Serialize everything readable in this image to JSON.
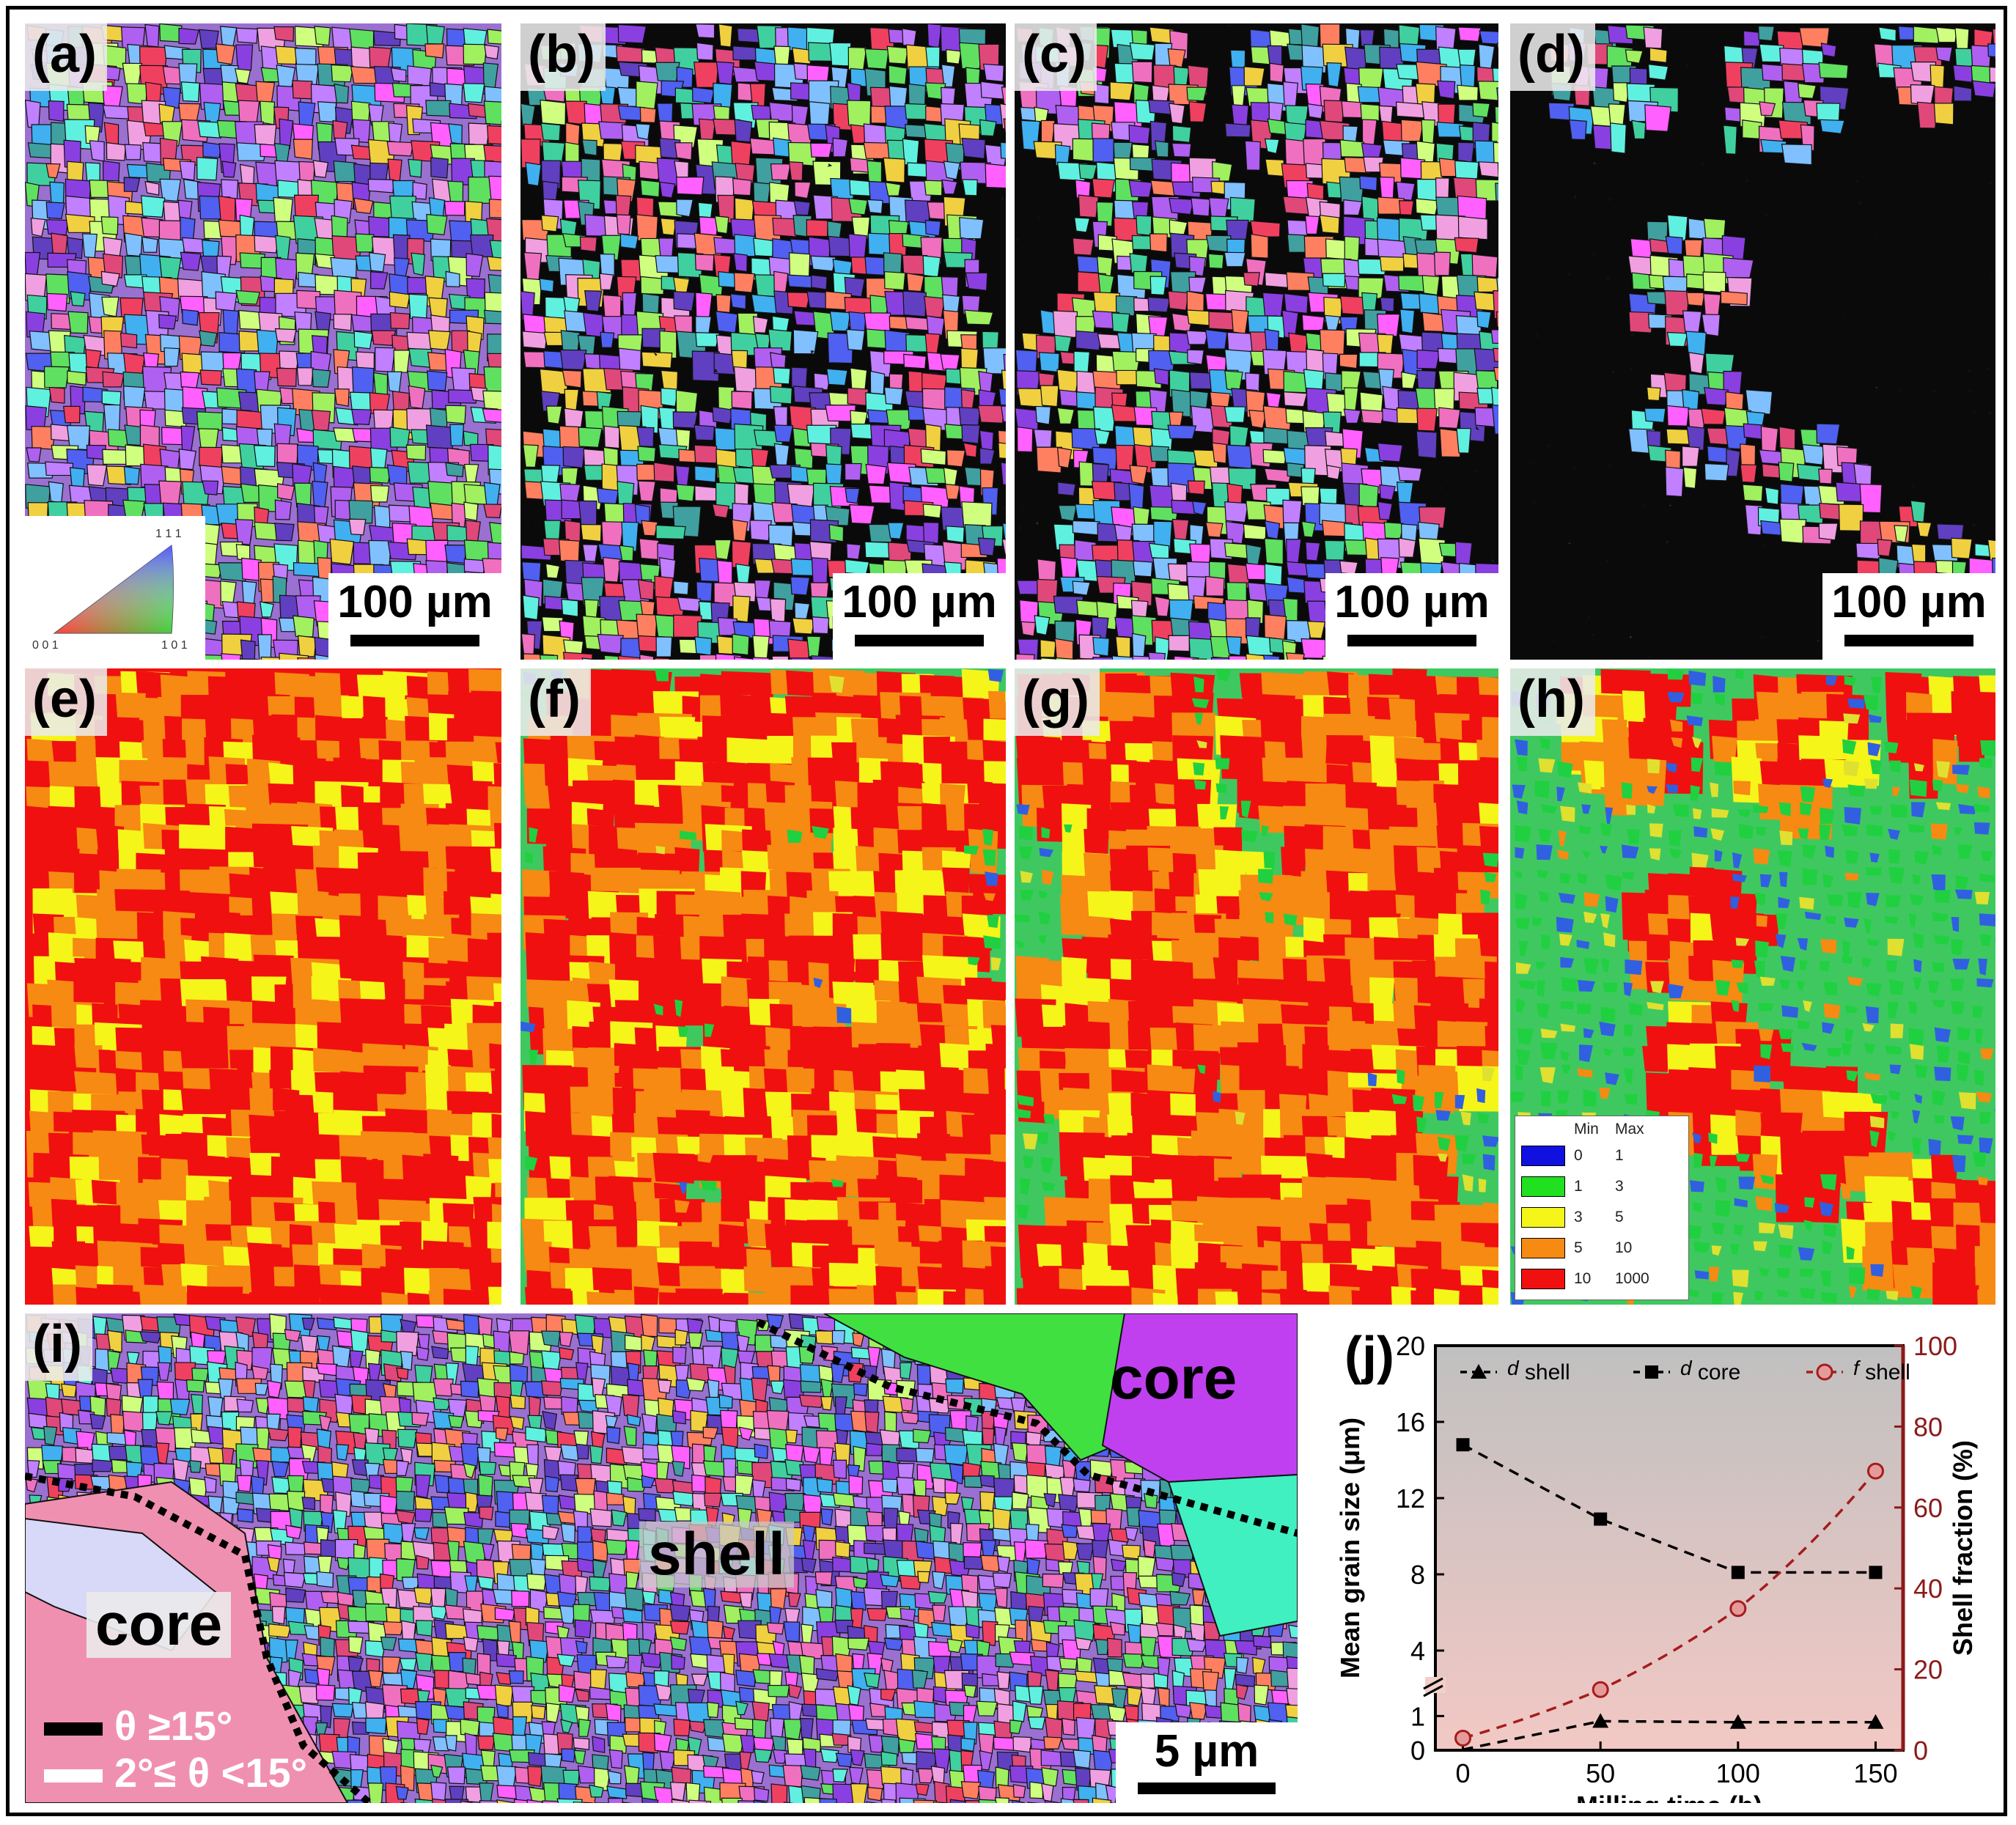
{
  "panels": {
    "a": {
      "label": "(a)",
      "scale": "100 µm"
    },
    "b": {
      "label": "(b)",
      "scale": "100 µm"
    },
    "c": {
      "label": "(c)",
      "scale": "100 µm"
    },
    "d": {
      "label": "(d)",
      "scale": "100 µm"
    },
    "e": {
      "label": "(e)"
    },
    "f": {
      "label": "(f)"
    },
    "g": {
      "label": "(g)"
    },
    "h": {
      "label": "(h)"
    },
    "i": {
      "label": "(i)",
      "scale": "5 µm"
    },
    "j": {
      "label": "(j)"
    }
  },
  "ipf_key": {
    "top": "1 1 1",
    "bottom_left": "0 0 1",
    "bottom_right": "1 0 1"
  },
  "kam_legend": {
    "min_header": "Min",
    "max_header": "Max",
    "rows": [
      {
        "min": "0",
        "max": "1",
        "color": "#1010e0"
      },
      {
        "min": "1",
        "max": "3",
        "color": "#20e020"
      },
      {
        "min": "3",
        "max": "5",
        "color": "#f5f51a"
      },
      {
        "min": "5",
        "max": "10",
        "color": "#f68a12"
      },
      {
        "min": "10",
        "max": "1000",
        "color": "#f01010"
      }
    ]
  },
  "panel_i": {
    "core_top": "core",
    "core_left": "core",
    "shell": "shell",
    "hagb": "θ ≥15°",
    "lagb": "2°≤ θ <15°"
  },
  "chart_data": {
    "type": "line",
    "title": "",
    "xlabel": "Milling time (h)",
    "ylabel_left": "Mean grain size (μm)",
    "ylabel_right": "Shell fraction (%)",
    "x_ticks": [
      "0",
      "50",
      "100",
      "150"
    ],
    "y_left_ticks": [
      "0",
      "1",
      "4",
      "8",
      "12",
      "16",
      "20"
    ],
    "y_right_ticks": [
      "0",
      "20",
      "40",
      "60",
      "80",
      "100"
    ],
    "xlim": [
      -10,
      160
    ],
    "y_left_broken_axis": {
      "lower": [
        0,
        1.5
      ],
      "upper": [
        3,
        20
      ]
    },
    "ylim_right": [
      0,
      100
    ],
    "background": {
      "top": "#c0c0c0",
      "bottom": "#f2c8c4"
    },
    "legend_position": "top",
    "series": [
      {
        "name": "d shell",
        "legend_italic": "d",
        "legend_rest": " shell",
        "axis": "left",
        "marker": "triangle",
        "style": "dashed",
        "color": "#000000",
        "x": [
          50,
          100,
          150
        ],
        "y": [
          0.85,
          0.82,
          0.82
        ]
      },
      {
        "name": "d core",
        "legend_italic": "d",
        "legend_rest": " core",
        "axis": "left",
        "marker": "square",
        "style": "dashed",
        "color": "#000000",
        "x": [
          0,
          50,
          100,
          150
        ],
        "y": [
          14.8,
          10.9,
          8.1,
          8.1
        ]
      },
      {
        "name": "f shell",
        "legend_italic": "f",
        "legend_rest": " shell",
        "axis": "right",
        "marker": "circle",
        "style": "dashed",
        "color": "#a51c1c",
        "x": [
          0,
          50,
          100,
          150
        ],
        "y": [
          3,
          15,
          35,
          69
        ]
      }
    ]
  }
}
